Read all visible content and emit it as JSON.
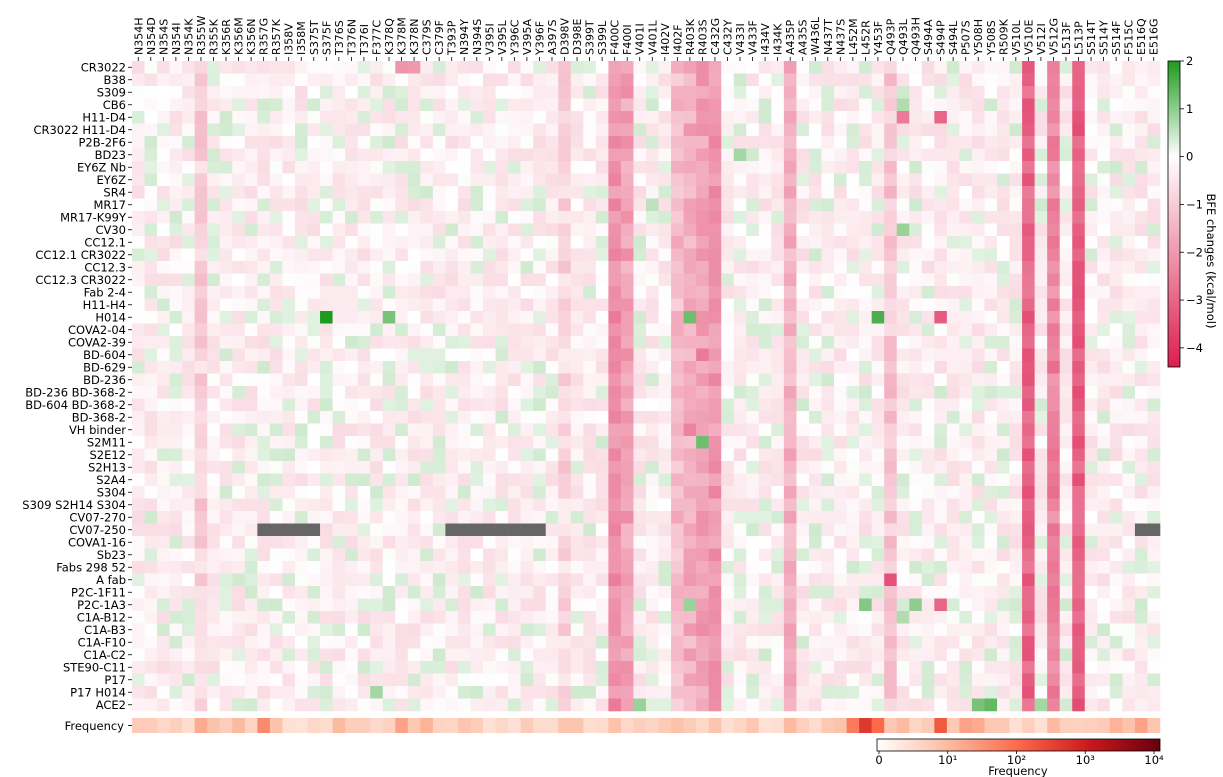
{
  "chart_data": [
    {
      "type": "heatmap",
      "title": "",
      "xlabel": "",
      "ylabel": "",
      "columns": [
        "N354H",
        "N354D",
        "N354S",
        "N354I",
        "N354K",
        "R355W",
        "R355K",
        "K356R",
        "K356M",
        "K356N",
        "R357G",
        "R357K",
        "I358V",
        "I358M",
        "S375T",
        "S375F",
        "T376S",
        "T376N",
        "T376I",
        "F377C",
        "K378Q",
        "K378M",
        "K378N",
        "C379S",
        "C379F",
        "T393P",
        "N394Y",
        "N394S",
        "V395I",
        "V395L",
        "Y396C",
        "V395A",
        "Y396F",
        "A397S",
        "D398V",
        "D398E",
        "S399T",
        "S399L",
        "F400C",
        "F400I",
        "V401I",
        "V401L",
        "I402V",
        "I402F",
        "R403K",
        "R403S",
        "C432G",
        "C432Y",
        "V433I",
        "V433F",
        "I434V",
        "I434K",
        "A435P",
        "A435S",
        "W436L",
        "N437T",
        "N437S",
        "L452M",
        "L452R",
        "Y453F",
        "Q493P",
        "Q493L",
        "Q493H",
        "S494A",
        "S494P",
        "S494L",
        "P507S",
        "Y508H",
        "Y508S",
        "R509K",
        "V510L",
        "V510E",
        "V512I",
        "V512G",
        "L513F",
        "L513P",
        "S514T",
        "S514Y",
        "S514F",
        "F515C",
        "E516Q",
        "E516G"
      ],
      "rows": [
        "CR3022",
        "B38",
        "S309",
        "CB6",
        "H11-D4",
        "CR3022 H11-D4",
        "P2B-2F6",
        "BD23",
        "EY6Z Nb",
        "EY6Z",
        "SR4",
        "MR17",
        "MR17-K99Y",
        "CV30",
        "CC12.1",
        "CC12.1 CR3022",
        "CC12.3",
        "CC12.3 CR3022",
        "Fab 2-4",
        "H11-H4",
        "H014",
        "COVA2-04",
        "COVA2-39",
        "BD-604",
        "BD-629",
        "BD-236",
        "BD-236 BD-368-2",
        "BD-604 BD-368-2",
        "BD-368-2",
        "VH binder",
        "S2M11",
        "S2E12",
        "S2H13",
        "S2A4",
        "S304",
        "S309 S2H14 S304",
        "CV07-270",
        "CV07-250",
        "COVA1-16",
        "Sb23",
        "Fabs 298 52",
        "A fab",
        "P2C-1F11",
        "P2C-1A3",
        "C1A-B12",
        "C1A-B3",
        "C1A-F10",
        "C1A-C2",
        "STE90-C11",
        "P17",
        "P17 H014",
        "ACE2"
      ],
      "freq_label": "Frequency",
      "colorbar_bfe": {
        "label": "BFE changes (kcal/mol)",
        "range": [
          -4.4,
          2.0
        ],
        "ticks": [
          2,
          1,
          0,
          -1,
          -2,
          -3,
          -4
        ],
        "tick_labels": [
          "2",
          "1",
          "0",
          "−1",
          "−2",
          "−3",
          "−4"
        ],
        "colors": {
          "neg": "#dc1e50",
          "zero": "#ffffff",
          "pos": "#1e9b1e"
        }
      },
      "colorbar_freq": {
        "label": "Frequency",
        "scale": "log",
        "tick_labels": [
          "0",
          "10¹",
          "10²",
          "10³",
          "10⁴"
        ],
        "colors": [
          "#ffffff",
          "#fcbba1",
          "#fb6a4a",
          "#cb181d",
          "#67000d"
        ]
      },
      "hot_columns": {
        "F400C": -2.2,
        "F400I": -1.8,
        "V510E": -3.0,
        "V512G": -2.4,
        "L513P": -3.1,
        "C432G": -2.0,
        "R403K": -1.6,
        "R403S": -1.8,
        "A435P": -1.5,
        "R355W": -0.9,
        "I402F": -1.3,
        "D398V": -0.8,
        "Q493P": -1.1
      },
      "missing": [
        {
          "row": "CV07-250",
          "cols": [
            "R357G",
            "R357K",
            "I358V",
            "I358M",
            "S375T"
          ]
        },
        {
          "row": "CV07-250",
          "cols": [
            "T393P",
            "N394Y",
            "N394S",
            "V395I",
            "V395L",
            "Y396C",
            "V395A",
            "Y396F"
          ]
        },
        {
          "row": "CV07-250",
          "cols": [
            "E516Q",
            "E516G"
          ]
        }
      ],
      "highlights": [
        {
          "row": "H014",
          "col": "S375F",
          "value": 2.0
        },
        {
          "row": "H014",
          "col": "K378Q",
          "value": 1.2
        },
        {
          "row": "H014",
          "col": "Y453F",
          "value": 1.6
        },
        {
          "row": "H014",
          "col": "R403K",
          "value": 1.3
        },
        {
          "row": "S2M11",
          "col": "R403S",
          "value": 1.3
        },
        {
          "row": "P2C-1A3",
          "col": "R403K",
          "value": 0.9
        },
        {
          "row": "P2C-1A3",
          "col": "L452R",
          "value": 1.1
        },
        {
          "row": "P2C-1A3",
          "col": "Q493H",
          "value": 1.0
        },
        {
          "row": "ACE2",
          "col": "Y508H",
          "value": 1.2
        },
        {
          "row": "ACE2",
          "col": "Y508S",
          "value": 1.4
        },
        {
          "row": "ACE2",
          "col": "V401I",
          "value": 0.9
        },
        {
          "row": "ACE2",
          "col": "V512I",
          "value": 0.8
        },
        {
          "row": "P17 H014",
          "col": "F377C",
          "value": 0.8
        },
        {
          "row": "CB6",
          "col": "Q493L",
          "value": 0.7
        },
        {
          "row": "MR17",
          "col": "V401L",
          "value": 0.6
        },
        {
          "row": "BD23",
          "col": "V433I",
          "value": 0.8
        },
        {
          "row": "CV30",
          "col": "Q493L",
          "value": 0.9
        },
        {
          "row": "C1A-B12",
          "col": "Q493L",
          "value": 0.7
        }
      ],
      "strong_neg": [
        {
          "row": "CR3022",
          "col": "K378M",
          "value": -2.1
        },
        {
          "row": "CR3022",
          "col": "K378N",
          "value": -2.0
        },
        {
          "row": "H11-D4",
          "col": "S494P",
          "value": -3.0
        },
        {
          "row": "H11-D4",
          "col": "Q493L",
          "value": -2.6
        },
        {
          "row": "H014",
          "col": "S494P",
          "value": -3.2
        },
        {
          "row": "A fab",
          "col": "Q493P",
          "value": -3.4
        },
        {
          "row": "P2C-1A3",
          "col": "S494P",
          "value": -3.0
        },
        {
          "row": "VH binder",
          "col": "R403K",
          "value": -2.4
        },
        {
          "row": "BD-604",
          "col": "R403S",
          "value": -2.6
        }
      ],
      "frequency_levels": {
        "R355W": 1.2,
        "K356M": 1.0,
        "R357G": 1.6,
        "R357K": 0.9,
        "T376S": 1.0,
        "K378M": 1.3,
        "C379S": 1.1,
        "F400C": 0.9,
        "I402F": 0.9,
        "A435P": 1.0,
        "L452M": 1.8,
        "L452R": 2.6,
        "Y453F": 2.0,
        "Q493L": 1.0,
        "S494P": 2.2,
        "P507S": 1.3,
        "Y508H": 1.2,
        "V512G": 1.0,
        "S514F": 1.1,
        "E516Q": 1.3
      }
    }
  ]
}
